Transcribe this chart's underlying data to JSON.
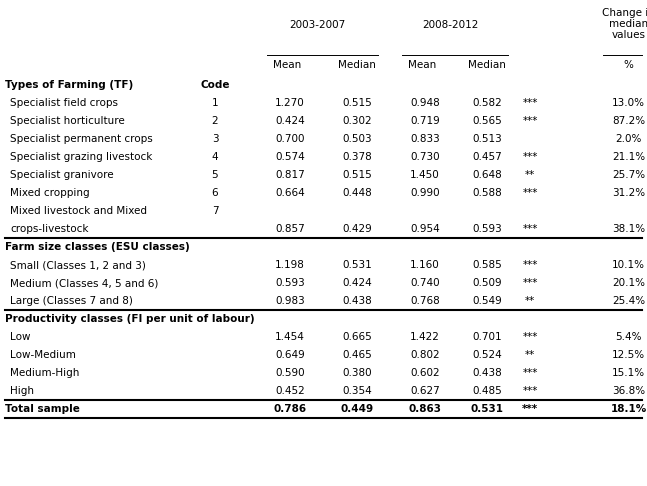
{
  "sections": [
    {
      "header": "Types of Farming (TF)",
      "header2": "Code",
      "rows": [
        {
          "label": "Specialist field crops",
          "label2": null,
          "code": "1",
          "m1": "1.270",
          "med1": "0.515",
          "m2": "0.948",
          "med2": "0.582",
          "sig": "***",
          "chg": "13.0%"
        },
        {
          "label": "Specialist horticulture",
          "label2": null,
          "code": "2",
          "m1": "0.424",
          "med1": "0.302",
          "m2": "0.719",
          "med2": "0.565",
          "sig": "***",
          "chg": "87.2%"
        },
        {
          "label": "Specialist permanent crops",
          "label2": null,
          "code": "3",
          "m1": "0.700",
          "med1": "0.503",
          "m2": "0.833",
          "med2": "0.513",
          "sig": "",
          "chg": "2.0%"
        },
        {
          "label": "Specialist grazing livestock",
          "label2": null,
          "code": "4",
          "m1": "0.574",
          "med1": "0.378",
          "m2": "0.730",
          "med2": "0.457",
          "sig": "***",
          "chg": "21.1%"
        },
        {
          "label": "Specialist granivore",
          "label2": null,
          "code": "5",
          "m1": "0.817",
          "med1": "0.515",
          "m2": "1.450",
          "med2": "0.648",
          "sig": "**",
          "chg": "25.7%"
        },
        {
          "label": "Mixed cropping",
          "label2": null,
          "code": "6",
          "m1": "0.664",
          "med1": "0.448",
          "m2": "0.990",
          "med2": "0.588",
          "sig": "***",
          "chg": "31.2%"
        },
        {
          "label": "Mixed livestock and Mixed",
          "label2": "crops-livestock",
          "code": "7",
          "m1": "0.857",
          "med1": "0.429",
          "m2": "0.954",
          "med2": "0.593",
          "sig": "***",
          "chg": "38.1%"
        }
      ]
    },
    {
      "header": "Farm size classes (ESU classes)",
      "header2": null,
      "rows": [
        {
          "label": "Small (Classes 1, 2 and 3)",
          "label2": null,
          "code": "",
          "m1": "1.198",
          "med1": "0.531",
          "m2": "1.160",
          "med2": "0.585",
          "sig": "***",
          "chg": "10.1%"
        },
        {
          "label": "Medium (Classes 4, 5 and 6)",
          "label2": null,
          "code": "",
          "m1": "0.593",
          "med1": "0.424",
          "m2": "0.740",
          "med2": "0.509",
          "sig": "***",
          "chg": "20.1%"
        },
        {
          "label": "Large (Classes 7 and 8)",
          "label2": null,
          "code": "",
          "m1": "0.983",
          "med1": "0.438",
          "m2": "0.768",
          "med2": "0.549",
          "sig": "**",
          "chg": "25.4%"
        }
      ]
    },
    {
      "header": "Productivity classes (FI per unit of labour)",
      "header2": null,
      "rows": [
        {
          "label": "Low",
          "label2": null,
          "code": "",
          "m1": "1.454",
          "med1": "0.665",
          "m2": "1.422",
          "med2": "0.701",
          "sig": "***",
          "chg": "5.4%"
        },
        {
          "label": "Low-Medium",
          "label2": null,
          "code": "",
          "m1": "0.649",
          "med1": "0.465",
          "m2": "0.802",
          "med2": "0.524",
          "sig": "**",
          "chg": "12.5%"
        },
        {
          "label": "Medium-High",
          "label2": null,
          "code": "",
          "m1": "0.590",
          "med1": "0.380",
          "m2": "0.602",
          "med2": "0.438",
          "sig": "***",
          "chg": "15.1%"
        },
        {
          "label": "High",
          "label2": null,
          "code": "",
          "m1": "0.452",
          "med1": "0.354",
          "m2": "0.627",
          "med2": "0.485",
          "sig": "***",
          "chg": "36.8%"
        }
      ]
    }
  ],
  "total_row": {
    "label": "Total sample",
    "m1": "0.786",
    "med1": "0.449",
    "m2": "0.863",
    "med2": "0.531",
    "sig": "***",
    "chg": "18.1%"
  },
  "font_size": 7.5,
  "font_family": "DejaVu Sans"
}
